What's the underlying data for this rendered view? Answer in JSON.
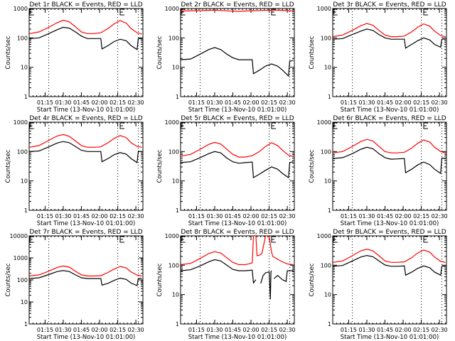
{
  "chart_data": [
    {
      "type": "line",
      "title": "Det 1r BLACK = Events, RED = LLD",
      "xlabel": "Start Time (13-Nov-10 01:01:00)",
      "ylabel": "Counts/sec",
      "yscale": "log",
      "ylim": [
        1,
        1000
      ],
      "yticks": [
        "1",
        "10",
        "100",
        "1000"
      ],
      "xticks": [
        "01:15",
        "01:30",
        "01:45",
        "02:00",
        "02:15",
        "02:30"
      ],
      "vlines": [
        "01:18",
        "02:15",
        "02:32"
      ],
      "series": [
        {
          "name": "Events",
          "color": "#000000",
          "x": [
            2,
            10,
            18,
            25,
            30,
            35,
            40,
            45,
            50,
            55,
            61,
            62,
            67,
            72,
            77,
            82,
            86,
            91,
            92,
            95
          ],
          "y": [
            95,
            100,
            140,
            190,
            230,
            215,
            160,
            115,
            95,
            95,
            95,
            42,
            55,
            75,
            90,
            80,
            55,
            40,
            95,
            95
          ]
        },
        {
          "name": "LLD",
          "color": "#ff0000",
          "x": [
            2,
            10,
            18,
            25,
            30,
            35,
            40,
            45,
            50,
            55,
            61,
            67,
            72,
            77,
            82,
            86,
            91,
            95
          ],
          "y": [
            140,
            160,
            230,
            330,
            400,
            350,
            240,
            160,
            140,
            140,
            150,
            210,
            300,
            390,
            320,
            210,
            150,
            135
          ]
        }
      ]
    },
    {
      "type": "line",
      "title": "Det 2r BLACK = Events, RED = LLD",
      "xlabel": "Start Time (13-Nov-10 01:01:00)",
      "ylabel": "Counts/sec",
      "yscale": "log",
      "ylim": [
        1,
        1000
      ],
      "yticks": [
        "1",
        "10",
        "100",
        "1000"
      ],
      "xticks": [
        "01:15",
        "01:30",
        "01:45",
        "02:00",
        "02:15",
        "02:30"
      ],
      "vlines": [
        "01:18",
        "02:15",
        "02:32"
      ],
      "series": [
        {
          "name": "Events",
          "color": "#000000",
          "x": [
            2,
            10,
            18,
            25,
            30,
            35,
            40,
            45,
            50,
            55,
            61,
            62,
            67,
            72,
            77,
            82,
            86,
            91,
            92,
            95
          ],
          "y": [
            18,
            19,
            28,
            40,
            47,
            40,
            28,
            21,
            18,
            18,
            18,
            6,
            8,
            11,
            13,
            11,
            8,
            5,
            16,
            17
          ]
        },
        {
          "name": "LLD",
          "color": "#ff0000",
          "x": [
            2,
            10,
            20,
            30,
            40,
            50,
            60,
            70,
            80,
            90,
            95
          ],
          "y": [
            820,
            840,
            850,
            880,
            830,
            800,
            840,
            860,
            880,
            850,
            820
          ]
        }
      ]
    },
    {
      "type": "line",
      "title": "Det 3r BLACK = Events, RED = LLD",
      "xlabel": "Start Time (13-Nov-10 01:01:00)",
      "ylabel": "Counts/sec",
      "yscale": "log",
      "ylim": [
        1,
        1000
      ],
      "yticks": [
        "1",
        "10",
        "100",
        "1000"
      ],
      "xticks": [
        "01:15",
        "01:30",
        "01:45",
        "02:00",
        "02:15",
        "02:30"
      ],
      "vlines": [
        "01:18",
        "02:15",
        "02:32"
      ],
      "series": [
        {
          "name": "Events",
          "color": "#000000",
          "x": [
            2,
            10,
            18,
            25,
            30,
            35,
            40,
            45,
            50,
            55,
            61,
            62,
            67,
            72,
            77,
            82,
            86,
            91,
            92,
            95
          ],
          "y": [
            90,
            95,
            130,
            170,
            200,
            180,
            130,
            100,
            90,
            90,
            90,
            45,
            60,
            80,
            100,
            85,
            60,
            48,
            90,
            90
          ]
        },
        {
          "name": "LLD",
          "color": "#ff0000",
          "x": [
            2,
            10,
            18,
            25,
            30,
            35,
            40,
            45,
            50,
            55,
            61,
            67,
            72,
            77,
            82,
            86,
            91,
            95
          ],
          "y": [
            110,
            125,
            180,
            260,
            310,
            270,
            180,
            125,
            110,
            110,
            115,
            160,
            230,
            300,
            250,
            170,
            120,
            110
          ]
        }
      ]
    },
    {
      "type": "line",
      "title": "Det 4r BLACK = Events, RED = LLD",
      "xlabel": "Start Time (13-Nov-10 01:01:00)",
      "ylabel": "Counts/sec",
      "yscale": "log",
      "ylim": [
        1,
        1000
      ],
      "yticks": [
        "1",
        "10",
        "100",
        "1000"
      ],
      "xticks": [
        "01:15",
        "01:30",
        "01:45",
        "02:00",
        "02:15",
        "02:30"
      ],
      "vlines": [
        "01:18",
        "02:15",
        "02:32"
      ],
      "series": [
        {
          "name": "Events",
          "color": "#000000",
          "x": [
            2,
            10,
            18,
            25,
            30,
            35,
            40,
            45,
            50,
            55,
            61,
            62,
            67,
            72,
            77,
            82,
            86,
            91,
            92,
            95
          ],
          "y": [
            100,
            105,
            145,
            195,
            220,
            200,
            150,
            110,
            100,
            100,
            100,
            45,
            58,
            78,
            92,
            82,
            58,
            42,
            100,
            100
          ]
        },
        {
          "name": "LLD",
          "color": "#ff0000",
          "x": [
            2,
            10,
            18,
            25,
            30,
            35,
            40,
            45,
            50,
            55,
            61,
            67,
            72,
            77,
            82,
            86,
            91,
            95
          ],
          "y": [
            140,
            160,
            240,
            340,
            380,
            330,
            230,
            160,
            140,
            140,
            145,
            200,
            280,
            350,
            300,
            200,
            150,
            140
          ]
        }
      ]
    },
    {
      "type": "line",
      "title": "Det 5r BLACK = Events, RED = LLD",
      "xlabel": "Start Time (13-Nov-10 01:01:00)",
      "ylabel": "Counts/sec",
      "yscale": "log",
      "ylim": [
        1,
        1000
      ],
      "yticks": [
        "1",
        "10",
        "100",
        "1000"
      ],
      "xticks": [
        "01:15",
        "01:30",
        "01:45",
        "02:00",
        "02:15",
        "02:30"
      ],
      "vlines": [
        "01:18",
        "02:15",
        "02:32"
      ],
      "series": [
        {
          "name": "Events",
          "color": "#000000",
          "x": [
            2,
            10,
            18,
            25,
            30,
            35,
            40,
            45,
            50,
            55,
            61,
            62,
            67,
            72,
            77,
            82,
            86,
            91,
            92,
            95
          ],
          "y": [
            42,
            45,
            62,
            85,
            100,
            90,
            60,
            45,
            40,
            42,
            44,
            13,
            17,
            23,
            30,
            25,
            18,
            13,
            42,
            45
          ]
        },
        {
          "name": "LLD",
          "color": "#ff0000",
          "x": [
            2,
            10,
            18,
            25,
            30,
            35,
            40,
            45,
            50,
            55,
            61,
            67,
            72,
            77,
            82,
            86,
            91,
            95
          ],
          "y": [
            70,
            80,
            120,
            175,
            205,
            180,
            120,
            80,
            65,
            65,
            72,
            100,
            150,
            200,
            160,
            110,
            75,
            68
          ]
        }
      ]
    },
    {
      "type": "line",
      "title": "Det 6r BLACK = Events, RED = LLD",
      "xlabel": "Start Time (13-Nov-10 01:01:00)",
      "ylabel": "Counts/sec",
      "yscale": "log",
      "ylim": [
        1,
        1000
      ],
      "yticks": [
        "1",
        "10",
        "100",
        "1000"
      ],
      "xticks": [
        "01:15",
        "01:30",
        "01:45",
        "02:00",
        "02:15",
        "02:30"
      ],
      "vlines": [
        "01:18",
        "02:15",
        "02:32"
      ],
      "series": [
        {
          "name": "Events",
          "color": "#000000",
          "x": [
            2,
            10,
            18,
            25,
            30,
            35,
            40,
            45,
            50,
            55,
            61,
            62,
            67,
            72,
            77,
            82,
            86,
            91,
            92,
            95
          ],
          "y": [
            58,
            62,
            85,
            120,
            140,
            125,
            85,
            62,
            55,
            56,
            58,
            19,
            25,
            35,
            44,
            36,
            25,
            18,
            60,
            58
          ]
        },
        {
          "name": "LLD",
          "color": "#ff0000",
          "x": [
            2,
            10,
            18,
            25,
            30,
            35,
            40,
            45,
            50,
            55,
            61,
            67,
            72,
            77,
            82,
            86,
            91,
            95
          ],
          "y": [
            90,
            100,
            150,
            220,
            260,
            230,
            150,
            100,
            90,
            90,
            95,
            130,
            190,
            250,
            210,
            140,
            100,
            90
          ]
        }
      ]
    },
    {
      "type": "line",
      "title": "Det 7r BLACK = Events, RED = LLD",
      "xlabel": "Start Time (13-Nov-10 01:01:00)",
      "ylabel": "Counts/sec",
      "yscale": "log",
      "ylim": [
        1,
        10000
      ],
      "yticks": [
        "1",
        "10",
        "100",
        "1000",
        "10000"
      ],
      "xticks": [
        "01:15",
        "01:30",
        "01:45",
        "02:00",
        "02:15",
        "02:30"
      ],
      "vlines": [
        "01:18",
        "02:15",
        "02:32"
      ],
      "series": [
        {
          "name": "Events",
          "color": "#000000",
          "x": [
            2,
            10,
            18,
            25,
            30,
            35,
            40,
            45,
            50,
            55,
            61,
            62,
            67,
            72,
            77,
            82,
            86,
            91,
            92,
            95
          ],
          "y": [
            115,
            125,
            175,
            240,
            265,
            240,
            170,
            125,
            115,
            115,
            115,
            58,
            70,
            95,
            120,
            105,
            72,
            55,
            115,
            118
          ]
        },
        {
          "name": "LLD",
          "color": "#ff0000",
          "x": [
            2,
            10,
            18,
            25,
            30,
            35,
            40,
            45,
            50,
            55,
            61,
            67,
            72,
            77,
            82,
            86,
            91,
            95
          ],
          "y": [
            150,
            170,
            250,
            370,
            430,
            380,
            250,
            170,
            150,
            150,
            155,
            220,
            310,
            410,
            350,
            230,
            165,
            150
          ]
        }
      ]
    },
    {
      "type": "line",
      "title": "Det 8r BLACK = Events, RED = LLD",
      "xlabel": "Start Time (13-Nov-10 01:01:00)",
      "ylabel": "Counts/sec",
      "yscale": "log",
      "ylim": [
        1,
        1000
      ],
      "yticks": [
        "1",
        "10",
        "100",
        "1000"
      ],
      "xticks": [
        "01:15",
        "01:30",
        "01:45",
        "02:00",
        "02:15",
        "02:30"
      ],
      "vlines": [
        "01:18",
        "02:15",
        "02:32"
      ],
      "series": [
        {
          "name": "Events",
          "color": "#000000",
          "x": [
            2,
            10,
            18,
            25,
            30,
            35,
            40,
            45,
            50,
            55,
            61,
            62,
            64,
            null,
            68,
            70,
            72,
            75,
            76,
            76.5,
            77,
            null,
            79,
            82,
            86,
            89,
            90,
            95
          ],
          "y": [
            65,
            70,
            95,
            130,
            155,
            140,
            100,
            72,
            65,
            65,
            68,
            25,
            32,
            null,
            24,
            45,
            55,
            60,
            7,
            60,
            65,
            null,
            35,
            45,
            32,
            28,
            65,
            65
          ]
        },
        {
          "name": "LLD",
          "color": "#ff0000",
          "x": [
            2,
            10,
            18,
            25,
            30,
            35,
            40,
            45,
            50,
            55,
            58,
            61,
            62,
            64,
            65,
            67,
            69,
            72,
            74,
            75,
            77,
            78,
            82,
            86,
            90,
            95
          ],
          "y": [
            105,
            115,
            170,
            250,
            290,
            260,
            180,
            125,
            105,
            105,
            110,
            120,
            1000,
            1000,
            210,
            220,
            250,
            1000,
            1000,
            900,
            280,
            200,
            160,
            130,
            110,
            105
          ]
        }
      ]
    },
    {
      "type": "line",
      "title": "Det 9r BLACK = Events, RED = LLD",
      "xlabel": "Start Time (13-Nov-10 01:01:00)",
      "ylabel": "Counts/sec",
      "yscale": "log",
      "ylim": [
        1,
        1000
      ],
      "yticks": [
        "1",
        "10",
        "100",
        "1000"
      ],
      "xticks": [
        "01:15",
        "01:30",
        "01:45",
        "02:00",
        "02:15",
        "02:30"
      ],
      "vlines": [
        "01:18",
        "02:15",
        "02:32"
      ],
      "series": [
        {
          "name": "Events",
          "color": "#000000",
          "x": [
            2,
            10,
            18,
            25,
            30,
            35,
            40,
            45,
            50,
            55,
            61,
            62,
            67,
            72,
            77,
            82,
            86,
            91,
            92,
            95
          ],
          "y": [
            92,
            98,
            140,
            190,
            215,
            195,
            140,
            102,
            92,
            92,
            95,
            46,
            58,
            78,
            95,
            82,
            58,
            46,
            92,
            92
          ]
        },
        {
          "name": "LLD",
          "color": "#ff0000",
          "x": [
            2,
            10,
            18,
            25,
            30,
            35,
            40,
            45,
            50,
            55,
            61,
            67,
            72,
            77,
            82,
            86,
            91,
            95
          ],
          "y": [
            125,
            140,
            210,
            310,
            350,
            310,
            210,
            140,
            125,
            125,
            130,
            180,
            260,
            330,
            280,
            190,
            135,
            125
          ]
        }
      ]
    }
  ]
}
